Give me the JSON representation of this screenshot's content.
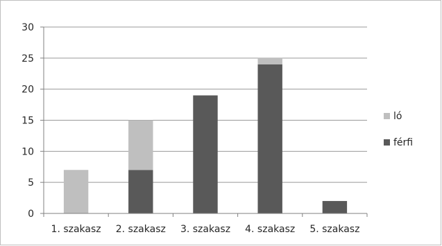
{
  "chart_data": {
    "type": "bar",
    "stacked": true,
    "categories": [
      "1. szakasz",
      "2. szakasz",
      "3. szakasz",
      "4. szakasz",
      "5. szakasz"
    ],
    "series": [
      {
        "name": "férfi",
        "values": [
          0,
          7,
          19,
          24,
          2
        ],
        "color": "#595959"
      },
      {
        "name": "ló",
        "values": [
          7,
          8,
          0,
          1,
          0
        ],
        "color": "#bfbfbf"
      }
    ],
    "ylim": [
      0,
      30
    ],
    "yticks": [
      0,
      5,
      10,
      15,
      20,
      25,
      30
    ],
    "grid": true,
    "legend": {
      "placement": "right",
      "order": [
        "ló",
        "férfi"
      ]
    },
    "title": "",
    "xlabel": "",
    "ylabel": ""
  }
}
